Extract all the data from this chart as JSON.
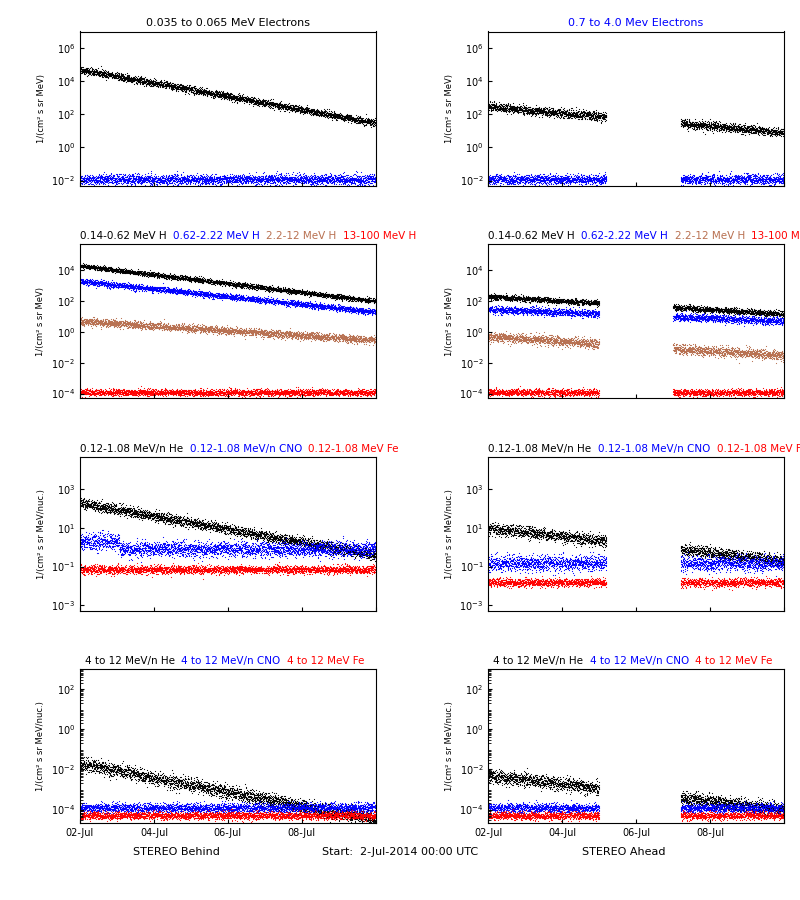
{
  "title_top_black": "0.035 to 0.065 MeV Electrons",
  "title_top_blue": "0.7 to 4.0 Mev Electrons",
  "title_row2_black": "0.14-0.62 MeV H",
  "title_row2_blue": "0.62-2.22 MeV H",
  "title_row2_brown": "2.2-12 MeV H",
  "title_row2_red": "13-100 MeV H",
  "title_row3_black": "0.12-1.08 MeV/n He",
  "title_row3_blue": "0.12-1.08 MeV/n CNO",
  "title_row3_red": "0.12-1.08 MeV Fe",
  "title_row4_black": "4 to 12 MeV/n He",
  "title_row4_blue": "4 to 12 MeV/n CNO",
  "title_row4_red": "4 to 12 MeV Fe",
  "xlabel_left": "STEREO Behind",
  "xlabel_right": "STEREO Ahead",
  "xlabel_center": "Start:  2-Jul-2014 00:00 UTC",
  "ylabel_electrons": "1/(cm² s sr MeV)",
  "ylabel_H": "1/(cm² s sr MeV)",
  "ylabel_heavy": "1/(cm² s sr MeV/nuc.)",
  "background_color": "#ffffff",
  "color_black": "#000000",
  "color_blue": "#0000ff",
  "color_red": "#ff0000",
  "color_brown": "#b87050",
  "seed": 42
}
